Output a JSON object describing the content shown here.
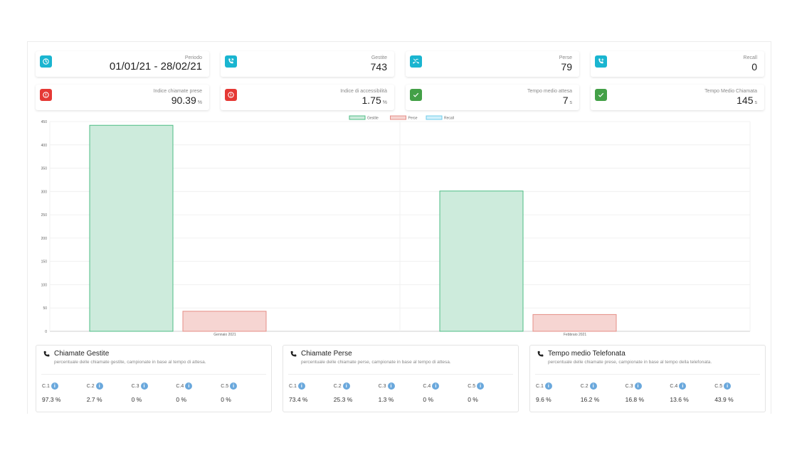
{
  "kpis_row1": [
    {
      "label": "Periodo",
      "value": "01/01/21 - 28/02/21",
      "icon": "clock-icon"
    },
    {
      "label": "Gestite",
      "value": "743",
      "icon": "phone-callback-icon"
    },
    {
      "label": "Perse",
      "value": "79",
      "icon": "phone-missed-icon"
    },
    {
      "label": "Recall",
      "value": "0",
      "icon": "phone-recall-icon"
    }
  ],
  "kpis_row2": [
    {
      "label": "Indice chiamate prese",
      "value": "90.39",
      "unit": "%",
      "icon": "alert-circle-icon"
    },
    {
      "label": "Indice di accessibilità",
      "value": "1.75",
      "unit": "%",
      "icon": "alert-circle-icon"
    },
    {
      "label": "Tempo medio attesa",
      "value": "7",
      "unit": "s",
      "icon": "check-icon"
    },
    {
      "label": "Tempo Medio Chiamata",
      "value": "145",
      "unit": "s",
      "icon": "check-icon"
    }
  ],
  "colors": {
    "cyan": "#1ab5d0",
    "red": "#e53935",
    "green": "#43a047",
    "info": "#6aa8dc"
  },
  "chart_data": {
    "type": "bar",
    "categories": [
      "Gennaio 2021",
      "Febbraio 2021"
    ],
    "series": [
      {
        "name": "Gestite",
        "values": [
          442,
          301
        ],
        "fill": "#cdebdc",
        "stroke": "#4dbd84"
      },
      {
        "name": "Perse",
        "values": [
          43,
          36
        ],
        "fill": "#f6d5d2",
        "stroke": "#e58e87"
      },
      {
        "name": "Recall",
        "values": [
          0,
          0
        ],
        "fill": "#d2f0fb",
        "stroke": "#6fcbe9"
      }
    ],
    "ylim": [
      0,
      450
    ],
    "yticks": [
      0,
      50,
      100,
      150,
      200,
      250,
      300,
      350,
      400,
      450
    ],
    "legend": "top-center",
    "grid": true
  },
  "panels": [
    {
      "title": "Chiamate Gestite",
      "subtitle": "percentuale delle chiamate gestite, campionate in base al tempo di attesa.",
      "cells": [
        {
          "label": "C.1",
          "value": "97.3 %"
        },
        {
          "label": "C.2",
          "value": "2.7 %"
        },
        {
          "label": "C.3",
          "value": "0 %"
        },
        {
          "label": "C.4",
          "value": "0 %"
        },
        {
          "label": "C.5",
          "value": "0 %"
        }
      ]
    },
    {
      "title": "Chiamate Perse",
      "subtitle": "percentuale delle chiamate perse, campionate in base al tempo di attesa.",
      "cells": [
        {
          "label": "C.1",
          "value": "73.4 %"
        },
        {
          "label": "C.2",
          "value": "25.3 %"
        },
        {
          "label": "C.3",
          "value": "1.3 %"
        },
        {
          "label": "C.4",
          "value": "0 %"
        },
        {
          "label": "C.5",
          "value": "0 %"
        }
      ]
    },
    {
      "title": "Tempo medio Telefonata",
      "subtitle": "percentuale delle chiamate prese, campionate in base al tempo della telefonata.",
      "cells": [
        {
          "label": "C.1",
          "value": "9.6 %"
        },
        {
          "label": "C.2",
          "value": "16.2 %"
        },
        {
          "label": "C.3",
          "value": "16.8 %"
        },
        {
          "label": "C.4",
          "value": "13.6 %"
        },
        {
          "label": "C.5",
          "value": "43.9 %"
        }
      ]
    }
  ]
}
